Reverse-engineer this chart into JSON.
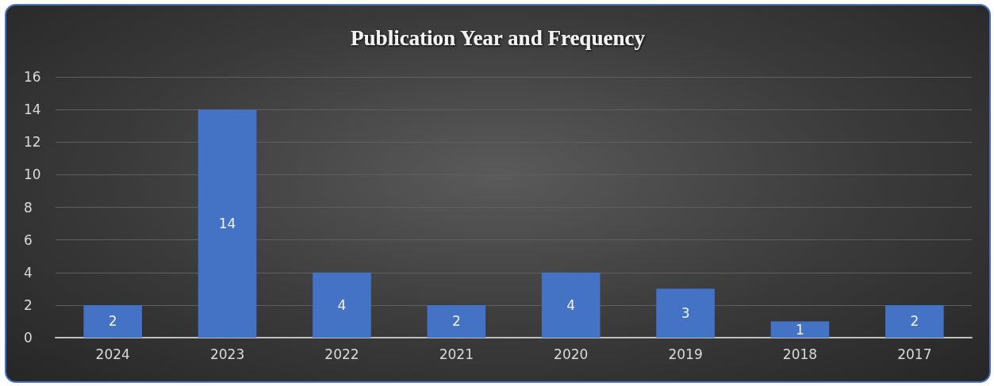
{
  "chart_data": {
    "type": "bar",
    "title": "Publication Year and Frequency",
    "categories": [
      "2024",
      "2023",
      "2022",
      "2021",
      "2020",
      "2019",
      "2018",
      "2017"
    ],
    "values": [
      2,
      14,
      4,
      2,
      4,
      3,
      1,
      2
    ],
    "color": "#4472c4",
    "ylim": [
      0,
      16
    ],
    "yticks": [
      0,
      2,
      4,
      6,
      8,
      10,
      12,
      14,
      16
    ],
    "grid": "y",
    "data_labels": true
  }
}
